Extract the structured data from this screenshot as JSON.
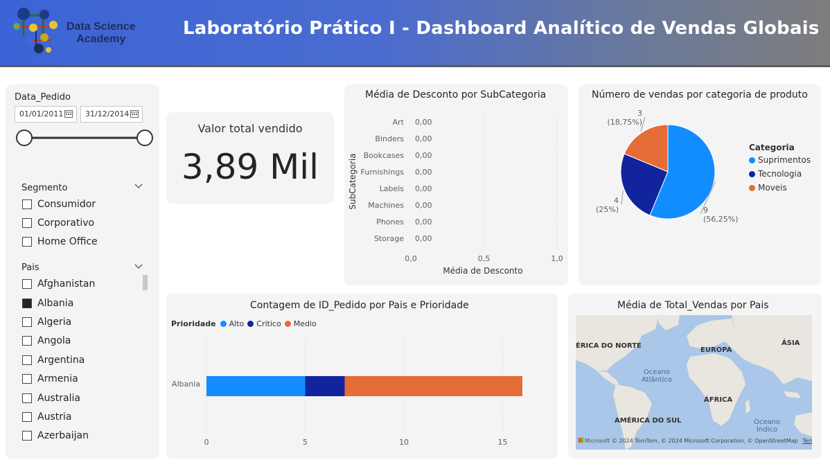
{
  "header": {
    "logo_line1": "Data Science",
    "logo_line2": "Academy",
    "title": "Laboratório Prático I - Dashboard Analítico de Vendas Globais"
  },
  "date_slicer": {
    "label": "Data_Pedido",
    "start": "01/01/2011",
    "end": "31/12/2014"
  },
  "segment_slicer": {
    "label": "Segmento",
    "options": [
      {
        "label": "Consumidor",
        "checked": false
      },
      {
        "label": "Corporativo",
        "checked": false
      },
      {
        "label": "Home Office",
        "checked": false
      }
    ]
  },
  "country_slicer": {
    "label": "Pais",
    "options": [
      {
        "label": "Afghanistan",
        "checked": false
      },
      {
        "label": "Albania",
        "checked": true
      },
      {
        "label": "Algeria",
        "checked": false
      },
      {
        "label": "Angola",
        "checked": false
      },
      {
        "label": "Argentina",
        "checked": false
      },
      {
        "label": "Armenia",
        "checked": false
      },
      {
        "label": "Australia",
        "checked": false
      },
      {
        "label": "Austria",
        "checked": false
      },
      {
        "label": "Azerbaijan",
        "checked": false
      }
    ]
  },
  "kpi": {
    "label": "Valor total vendido",
    "value": "3,89 Mil"
  },
  "discount_chart": {
    "title": "Média de Desconto por SubCategoria",
    "chart_data": {
      "type": "bar",
      "orientation": "horizontal",
      "categories": [
        "Art",
        "Binders",
        "Bookcases",
        "Furnishings",
        "Labels",
        "Machines",
        "Phones",
        "Storage"
      ],
      "values": [
        0,
        0,
        0,
        0,
        0,
        0,
        0,
        0
      ],
      "value_labels": [
        "0,00",
        "0,00",
        "0,00",
        "0,00",
        "0,00",
        "0,00",
        "0,00",
        "0,00"
      ],
      "xlabel": "Média de Desconto",
      "ylabel": "SubCategoria",
      "xlim": [
        0,
        1
      ],
      "xticks": [
        "0,0",
        "0,5",
        "1,0"
      ]
    }
  },
  "pie_chart": {
    "title": "Número de vendas por categoria de produto",
    "legend_title": "Categoria",
    "chart_data": {
      "type": "pie",
      "labels": [
        "Suprimentos",
        "Tecnologia",
        "Moveis"
      ],
      "values": [
        9,
        4,
        3
      ],
      "data_labels": [
        {
          "value": "9",
          "pct": "(56,25%)"
        },
        {
          "value": "4",
          "pct": "(25%)"
        },
        {
          "value": "3",
          "pct": "(18,75%)"
        }
      ],
      "colors": [
        "#118dff",
        "#12239e",
        "#e66c37"
      ]
    }
  },
  "priority_chart": {
    "title": "Contagem de ID_Pedido por Pais e Prioridade",
    "legend_title": "Prioridade",
    "chart_data": {
      "type": "bar",
      "orientation": "horizontal",
      "stacked": true,
      "categories": [
        "Albania"
      ],
      "series": [
        {
          "name": "Alto",
          "values": [
            5
          ],
          "color": "#118dff"
        },
        {
          "name": "Critico",
          "values": [
            2
          ],
          "color": "#12239e"
        },
        {
          "name": "Medio",
          "values": [
            9
          ],
          "color": "#e66c37"
        }
      ],
      "xlim": [
        0,
        16
      ],
      "xticks": [
        "0",
        "5",
        "10",
        "15"
      ]
    }
  },
  "map": {
    "title": "Média de Total_Vendas por Pais",
    "labels": {
      "north_america": "ÉRICA DO NORTE",
      "asia": "ÁSIA",
      "europe": "EUROPA",
      "atlantic_line1": "Oceano",
      "atlantic_line2": "Atlântico",
      "africa": "ÁFRICA",
      "south_america": "AMÉRICA DO SUL",
      "indian_line1": "Oceano",
      "indian_line2": "Índico"
    },
    "ms_logo_text": "Microsoft",
    "attribution": "© 2024 TomTom, © 2024 Microsoft Corporation, © OpenStreetMap",
    "terms": "Terms"
  }
}
